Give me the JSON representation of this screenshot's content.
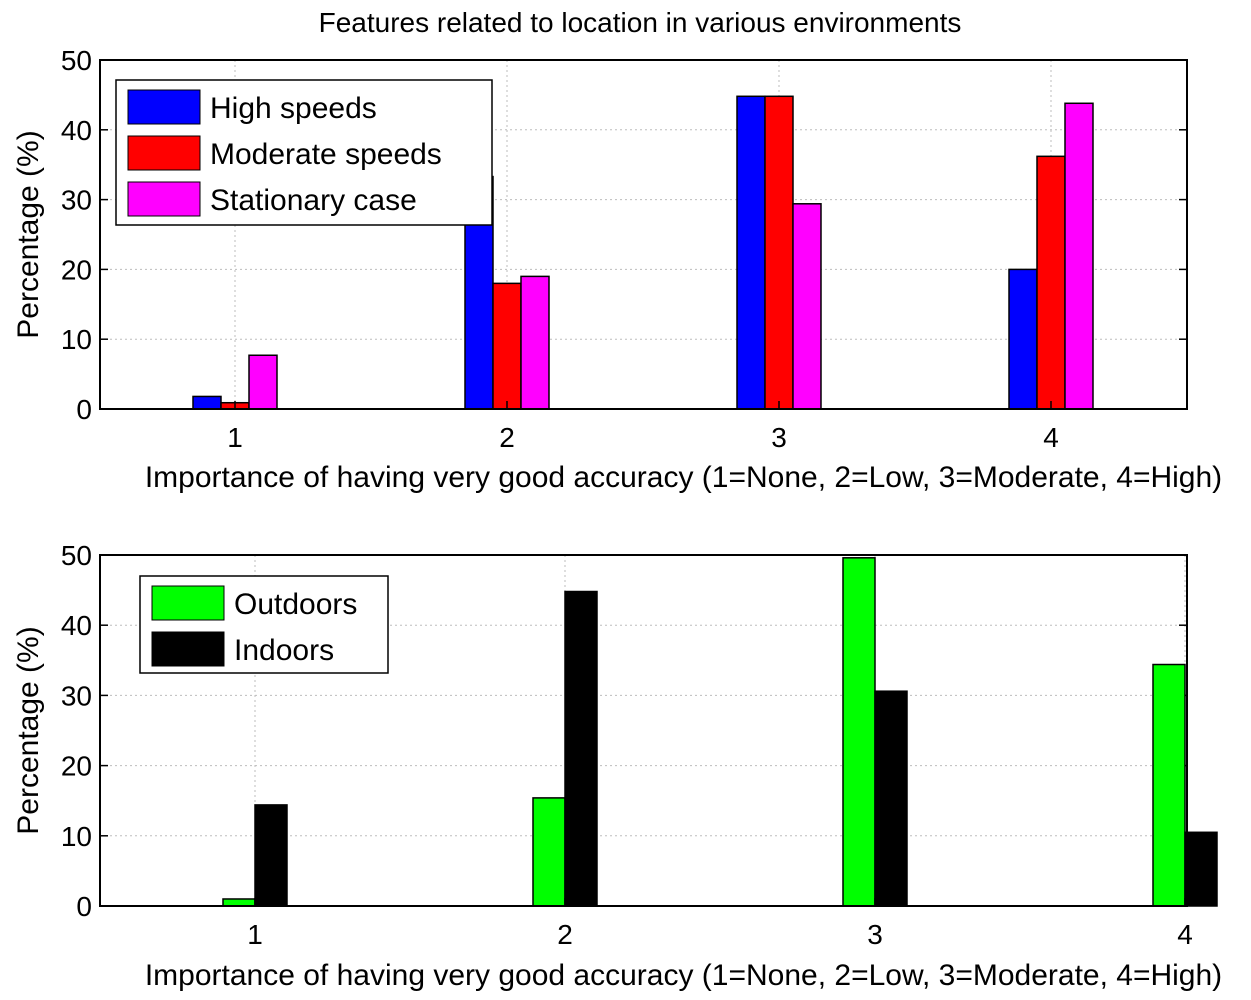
{
  "figure_title": "Features related to location in various environments",
  "chart_data": [
    {
      "type": "bar",
      "title": "Features related to location in various environments",
      "xlabel": "Importance of having very good accuracy (1=None, 2=Low, 3=Moderate, 4=High)",
      "ylabel": "Percentage (%)",
      "categories": [
        "1",
        "2",
        "3",
        "4"
      ],
      "ylim": [
        0,
        50
      ],
      "yticks": [
        "0",
        "10",
        "20",
        "30",
        "40",
        "50"
      ],
      "grid": true,
      "legend_position": "top-left",
      "series": [
        {
          "name": "High speeds",
          "color": "#0000ff",
          "values": [
            1.8,
            33.3,
            44.8,
            20.0
          ]
        },
        {
          "name": "Moderate speeds",
          "color": "#ff0000",
          "values": [
            0.9,
            18.0,
            44.8,
            36.2
          ]
        },
        {
          "name": "Stationary case",
          "color": "#ff00ff",
          "values": [
            7.7,
            19.0,
            29.4,
            43.8
          ]
        }
      ]
    },
    {
      "type": "bar",
      "title": "",
      "xlabel": "Importance of having very good accuracy (1=None, 2=Low, 3=Moderate, 4=High)",
      "ylabel": "Percentage (%)",
      "categories": [
        "1",
        "2",
        "3",
        "4"
      ],
      "ylim": [
        0,
        50
      ],
      "yticks": [
        "0",
        "10",
        "20",
        "30",
        "40",
        "50"
      ],
      "grid": true,
      "legend_position": "top-left",
      "series": [
        {
          "name": "Outdoors",
          "color": "#00ff00",
          "values": [
            1.0,
            15.4,
            49.6,
            34.4
          ]
        },
        {
          "name": "Indoors",
          "color": "#000000",
          "values": [
            14.4,
            44.8,
            30.6,
            10.5
          ]
        }
      ]
    }
  ]
}
